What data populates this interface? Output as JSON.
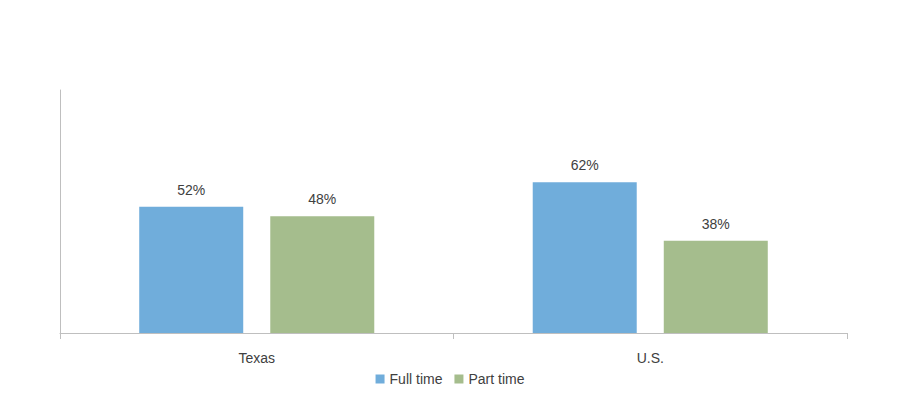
{
  "chart_data": {
    "type": "bar",
    "categories": [
      "Texas",
      "U.S."
    ],
    "series": [
      {
        "name": "Full time",
        "color": "#70ADDB",
        "values": [
          52,
          62
        ],
        "value_labels": [
          "52%",
          "62%"
        ]
      },
      {
        "name": "Part time",
        "color": "#A5BD8D",
        "values": [
          48,
          38
        ],
        "value_labels": [
          "48%",
          "38%"
        ]
      }
    ],
    "ylim": [
      0,
      100
    ],
    "grid": false,
    "legend": "bottom",
    "data_labels": true,
    "tick_labels": "x"
  }
}
